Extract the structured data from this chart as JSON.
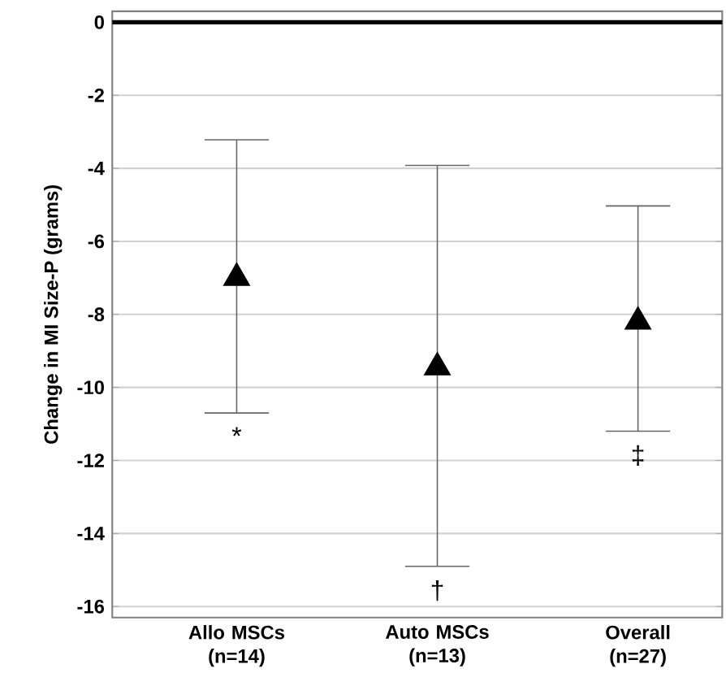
{
  "chart_data": {
    "type": "scatter",
    "ylabel": "Change in MI Size-P (grams)",
    "categories": [
      "Allo MSCs (n=14)",
      "Auto MSCs (n=13)",
      "Overall (n=27)"
    ],
    "values": [
      -7.0,
      -9.45,
      -8.2
    ],
    "errors": [
      [
        -10.7,
        -3.22
      ],
      [
        -14.9,
        -3.92
      ],
      [
        -11.2,
        -5.03
      ]
    ],
    "color": "#000000",
    "marker": "triangle",
    "ylim": [
      -16.3,
      0.3
    ],
    "yticks": [
      0,
      -2,
      -4,
      -6,
      -8,
      -10,
      -12,
      -14,
      -16
    ],
    "grid": "y",
    "ref_lines": [
      {
        "axis": "y",
        "value": 0,
        "color": "#000000"
      }
    ],
    "annotations": [
      "*",
      "†",
      "‡"
    ]
  }
}
